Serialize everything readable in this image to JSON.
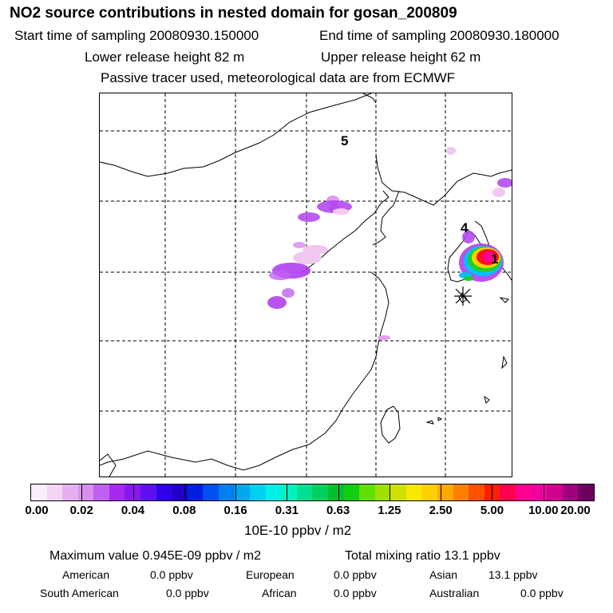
{
  "title": "NO2 source contributions in nested domain for gosan_200809",
  "sampling": {
    "start": "Start time of sampling 20080930.150000",
    "end": "End time of sampling 20080930.180000"
  },
  "release": {
    "lower": "Lower release height   82 m",
    "upper": "Upper release height   62 m"
  },
  "tracer_note": "Passive tracer used, meteorological data are from ECMWF",
  "map": {
    "labels": [
      "5",
      "4",
      "1"
    ],
    "colors": {
      "light": "#f0c8f0",
      "mid": "#d880f0",
      "dark": "#b040f0",
      "yellow": "#ffd000",
      "red": "#ff1010",
      "green": "#20d020",
      "cyan": "#00c0ff"
    }
  },
  "colorbar": {
    "colors": [
      "#fbeefb",
      "#f4d4f4",
      "#e6b0f0",
      "#d890ee",
      "#c060f0",
      "#a828f0",
      "#8818f0",
      "#6010f0",
      "#3000e8",
      "#2000c8",
      "#0020e0",
      "#0050f0",
      "#0080f0",
      "#00a8f0",
      "#00d0f0",
      "#00f0e8",
      "#00f0c0",
      "#00e090",
      "#00d060",
      "#00c030",
      "#10d010",
      "#60e000",
      "#a0e000",
      "#d0e000",
      "#f8e800",
      "#ffd000",
      "#ffa800",
      "#ff8000",
      "#ff5000",
      "#ff2000",
      "#ff0050",
      "#ff0090",
      "#f000a0",
      "#d00090",
      "#a00080",
      "#700060"
    ],
    "ticks": [
      "0.00",
      "0.02",
      "0.04",
      "0.08",
      "0.16",
      "0.31",
      "0.63",
      "1.25",
      "2.50",
      "5.00",
      "10.00",
      "20.00"
    ],
    "unit": "10E-10 ppbv / m2"
  },
  "stats": {
    "max": "Maximum value  0.945E-09 ppbv / m2",
    "total": "Total mixing ratio      13.1 ppbv",
    "american_label": "American",
    "american_val": "0.0 ppbv",
    "european_label": "European",
    "european_val": "0.0 ppbv",
    "asian_label": "Asian",
    "asian_val": "13.1 ppbv",
    "south_american_label": "South American",
    "south_american_val": "0.0 ppbv",
    "african_label": "African",
    "african_val": "0.0 ppbv",
    "australian_label": "Australian",
    "australian_val": "0.0 ppbv"
  }
}
